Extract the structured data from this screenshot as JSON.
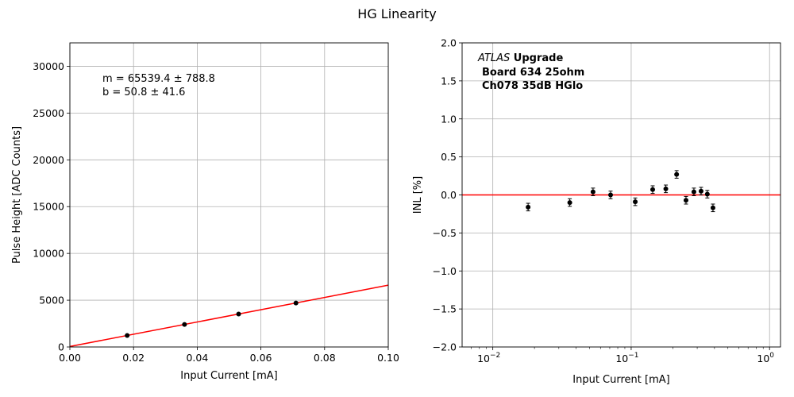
{
  "suptitle": "HG Linearity",
  "chart_data": [
    {
      "type": "scatter",
      "title": "",
      "xlabel": "Input Current [mA]",
      "ylabel": "Pulse Height [ADC Counts]",
      "xlim": [
        0.0,
        0.1
      ],
      "ylim": [
        0,
        32500
      ],
      "x_scale": "linear",
      "xticks": [
        0.0,
        0.02,
        0.04,
        0.06,
        0.08,
        0.1
      ],
      "xtick_labels": [
        "0.00",
        "0.02",
        "0.04",
        "0.06",
        "0.08",
        "0.10"
      ],
      "yticks": [
        0,
        5000,
        10000,
        15000,
        20000,
        25000,
        30000
      ],
      "ytick_labels": [
        "0",
        "5000",
        "10000",
        "15000",
        "20000",
        "25000",
        "30000"
      ],
      "grid": true,
      "points": {
        "x": [
          0.018,
          0.036,
          0.053,
          0.071
        ],
        "y": [
          1230,
          2410,
          3525,
          4701
        ],
        "color": "#000000"
      },
      "fit_line": {
        "slope": 65539.4,
        "intercept": 50.8,
        "color": "#ff0000"
      },
      "annotation": {
        "line1": "m = 65539.4 ± 788.8",
        "line2": " b = 50.8 ± 41.6"
      }
    },
    {
      "type": "scatter",
      "title": "",
      "xlabel": "Input Current [mA]",
      "ylabel": "INL [%]",
      "x_scale": "log",
      "xlim": [
        0.006,
        1.2
      ],
      "ylim": [
        -2.0,
        2.0
      ],
      "xticks": [
        0.01,
        0.1,
        1
      ],
      "xtick_labels": [
        {
          "base": "10",
          "exp": "−2"
        },
        {
          "base": "10",
          "exp": "−1"
        },
        {
          "base": "10",
          "exp": "0"
        }
      ],
      "yticks": [
        -2.0,
        -1.5,
        -1.0,
        -0.5,
        0.0,
        0.5,
        1.0,
        1.5,
        2.0
      ],
      "ytick_labels": [
        "−2.0",
        "−1.5",
        "−1.0",
        "−0.5",
        "0.0",
        "0.5",
        "1.0",
        "1.5",
        "2.0"
      ],
      "grid": true,
      "reference_line": {
        "y": 0.0,
        "color": "#ff0000"
      },
      "points": {
        "x": [
          0.018,
          0.036,
          0.053,
          0.071,
          0.107,
          0.143,
          0.178,
          0.213,
          0.249,
          0.284,
          0.32,
          0.355,
          0.39
        ],
        "y": [
          -0.16,
          -0.1,
          0.04,
          0.0,
          -0.09,
          0.07,
          0.08,
          0.27,
          -0.07,
          0.04,
          0.05,
          0.01,
          -0.17
        ],
        "yerr": 0.05,
        "color": "#000000"
      },
      "annotation": {
        "italic": "ATLAS",
        "bold": " Upgrade",
        "line2": "Board 634 25ohm",
        "line3": "Ch078 35dB HGlo"
      }
    }
  ]
}
